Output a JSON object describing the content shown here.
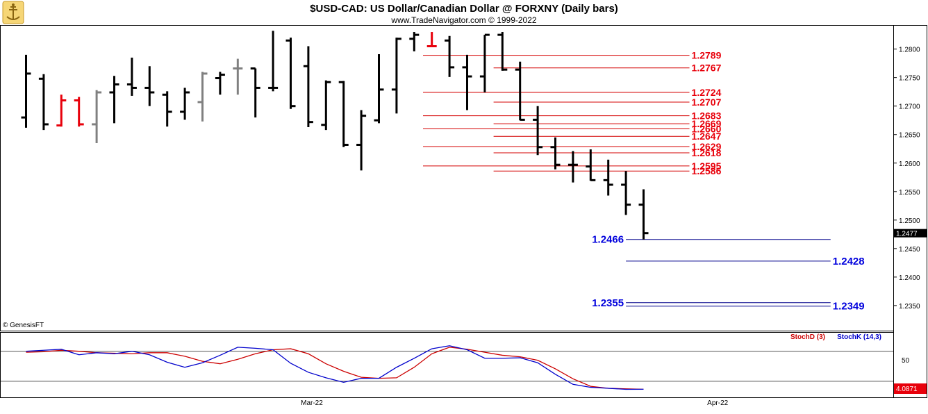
{
  "header": {
    "title": "$USD-CAD:  US Dollar/Canadian Dollar @ FORXNY  (Daily bars)",
    "subtitle": "www.TradeNavigator.com © 1999-2022"
  },
  "watermark": "© GenesisFT",
  "colors": {
    "bar_up": "#000000",
    "bar_down_red": "#e8000b",
    "bar_gray": "#808080",
    "resistance_line": "#d40000",
    "support_line": "#00008b",
    "resistance_text": "#e8000b",
    "support_text": "#0000dd",
    "stoch_d": "#cc0000",
    "stoch_k": "#0000cc",
    "last_price_bg": "#000000",
    "stoch_value_bg": "#e8000b"
  },
  "chart_data": [
    {
      "type": "ohlc",
      "title": "$USD-CAD:  US Dollar/Canadian Dollar @ FORXNY  (Daily bars)",
      "ylim": [
        1.2306,
        1.2841
      ],
      "y_ticks": [
        "1.2800",
        "1.2750",
        "1.2700",
        "1.2650",
        "1.2600",
        "1.2550",
        "1.2500",
        "1.2450",
        "1.2400",
        "1.2350"
      ],
      "x_ticks": [
        {
          "label": "Mar-22",
          "bar_index": 16.2
        },
        {
          "label": "Apr-22",
          "bar_index": 39.2
        }
      ],
      "last_price_label": "1.2477",
      "bars": [
        {
          "o": 1.268,
          "h": 1.279,
          "l": 1.2662,
          "c": 1.2757,
          "color": "black"
        },
        {
          "o": 1.2748,
          "h": 1.2756,
          "l": 1.2658,
          "c": 1.2668,
          "color": "black"
        },
        {
          "o": 1.2666,
          "h": 1.272,
          "l": 1.2664,
          "c": 1.271,
          "color": "red"
        },
        {
          "o": 1.271,
          "h": 1.2716,
          "l": 1.2664,
          "c": 1.2668,
          "color": "red"
        },
        {
          "o": 1.2668,
          "h": 1.2728,
          "l": 1.2635,
          "c": 1.2724,
          "color": "gray"
        },
        {
          "o": 1.2724,
          "h": 1.2753,
          "l": 1.267,
          "c": 1.2738,
          "color": "black"
        },
        {
          "o": 1.2738,
          "h": 1.2785,
          "l": 1.2718,
          "c": 1.2732,
          "color": "black"
        },
        {
          "o": 1.2732,
          "h": 1.277,
          "l": 1.27,
          "c": 1.2724,
          "color": "black"
        },
        {
          "o": 1.272,
          "h": 1.2726,
          "l": 1.2664,
          "c": 1.269,
          "color": "black"
        },
        {
          "o": 1.269,
          "h": 1.2732,
          "l": 1.2676,
          "c": 1.2724,
          "color": "black"
        },
        {
          "o": 1.2707,
          "h": 1.276,
          "l": 1.2673,
          "c": 1.2757,
          "color": "gray"
        },
        {
          "o": 1.2749,
          "h": 1.276,
          "l": 1.272,
          "c": 1.2755,
          "color": "black"
        },
        {
          "o": 1.2766,
          "h": 1.2783,
          "l": 1.272,
          "c": 1.2766,
          "color": "gray"
        },
        {
          "o": 1.2766,
          "h": 1.2766,
          "l": 1.268,
          "c": 1.2732,
          "color": "black"
        },
        {
          "o": 1.2732,
          "h": 1.2832,
          "l": 1.2726,
          "c": 1.2732,
          "color": "black"
        },
        {
          "o": 1.2815,
          "h": 1.282,
          "l": 1.2695,
          "c": 1.27,
          "color": "black"
        },
        {
          "o": 1.277,
          "h": 1.2805,
          "l": 1.2663,
          "c": 1.2672,
          "color": "black"
        },
        {
          "o": 1.2667,
          "h": 1.2745,
          "l": 1.2658,
          "c": 1.2742,
          "color": "black"
        },
        {
          "o": 1.2742,
          "h": 1.2744,
          "l": 1.2628,
          "c": 1.2632,
          "color": "black"
        },
        {
          "o": 1.2632,
          "h": 1.2693,
          "l": 1.2587,
          "c": 1.2683,
          "color": "black"
        },
        {
          "o": 1.2675,
          "h": 1.2791,
          "l": 1.267,
          "c": 1.2729,
          "color": "black"
        },
        {
          "o": 1.2729,
          "h": 1.282,
          "l": 1.2687,
          "c": 1.2818,
          "color": "black"
        },
        {
          "o": 1.2818,
          "h": 1.283,
          "l": 1.2796,
          "c": 1.2825,
          "color": "black"
        },
        {
          "o": 1.2805,
          "h": 1.283,
          "l": 1.2804,
          "c": 1.2805,
          "color": "red"
        },
        {
          "o": 1.2815,
          "h": 1.2823,
          "l": 1.2751,
          "c": 1.2768,
          "color": "black"
        },
        {
          "o": 1.2768,
          "h": 1.279,
          "l": 1.2693,
          "c": 1.2752,
          "color": "black"
        },
        {
          "o": 1.2752,
          "h": 1.2825,
          "l": 1.2724,
          "c": 1.2825,
          "color": "black"
        },
        {
          "o": 1.2825,
          "h": 1.283,
          "l": 1.2762,
          "c": 1.2764,
          "color": "black"
        },
        {
          "o": 1.2764,
          "h": 1.2778,
          "l": 1.2675,
          "c": 1.2676,
          "color": "black"
        },
        {
          "o": 1.2676,
          "h": 1.27,
          "l": 1.2614,
          "c": 1.2628,
          "color": "black"
        },
        {
          "o": 1.2628,
          "h": 1.2645,
          "l": 1.2589,
          "c": 1.2597,
          "color": "black"
        },
        {
          "o": 1.2597,
          "h": 1.2621,
          "l": 1.2566,
          "c": 1.2597,
          "color": "black"
        },
        {
          "o": 1.2594,
          "h": 1.2624,
          "l": 1.2569,
          "c": 1.257,
          "color": "black"
        },
        {
          "o": 1.257,
          "h": 1.2606,
          "l": 1.2543,
          "c": 1.2562,
          "color": "black"
        },
        {
          "o": 1.2562,
          "h": 1.2586,
          "l": 1.2509,
          "c": 1.2527,
          "color": "black"
        },
        {
          "o": 1.2527,
          "h": 1.2554,
          "l": 1.2466,
          "c": 1.2477,
          "color": "black"
        }
      ],
      "resistance_levels": [
        {
          "label": "1.2789",
          "value": 1.2789,
          "start_bar": 22.5,
          "end_bar": 37.6
        },
        {
          "label": "1.2767",
          "value": 1.2767,
          "start_bar": 26.5,
          "end_bar": 37.6
        },
        {
          "label": "1.2724",
          "value": 1.2724,
          "start_bar": 22.5,
          "end_bar": 37.6
        },
        {
          "label": "1.2707",
          "value": 1.2707,
          "start_bar": 26.5,
          "end_bar": 37.6
        },
        {
          "label": "1.2683",
          "value": 1.2683,
          "start_bar": 22.5,
          "end_bar": 37.6
        },
        {
          "label": "1.2669",
          "value": 1.2669,
          "start_bar": 26.5,
          "end_bar": 37.6
        },
        {
          "label": "1.2660",
          "value": 1.266,
          "start_bar": 22.5,
          "end_bar": 37.6
        },
        {
          "label": "1.2647",
          "value": 1.2647,
          "start_bar": 26.5,
          "end_bar": 37.6
        },
        {
          "label": "1.2629",
          "value": 1.2629,
          "start_bar": 22.5,
          "end_bar": 37.6
        },
        {
          "label": "1.2618",
          "value": 1.2618,
          "start_bar": 26.5,
          "end_bar": 37.6
        },
        {
          "label": "1.2595",
          "value": 1.2595,
          "start_bar": 22.5,
          "end_bar": 37.6
        },
        {
          "label": "1.2586",
          "value": 1.2586,
          "start_bar": 26.5,
          "end_bar": 37.6
        }
      ],
      "support_levels": [
        {
          "label": "1.2466",
          "value": 1.2466,
          "start_bar": 34.0,
          "end_bar": 45.6,
          "label_side": "left"
        },
        {
          "label": "1.2428",
          "value": 1.2428,
          "start_bar": 34.0,
          "end_bar": 45.6,
          "label_side": "right"
        },
        {
          "label": "1.2355",
          "value": 1.2355,
          "start_bar": 34.0,
          "end_bar": 45.6,
          "label_side": "left"
        },
        {
          "label": "1.2349",
          "value": 1.2349,
          "start_bar": 34.0,
          "end_bar": 45.6,
          "label_side": "right"
        }
      ]
    },
    {
      "type": "line",
      "title": "",
      "legend": [
        "StochD (3)",
        "StochK (14,3)"
      ],
      "legend_placement": "top-right",
      "ylim": [
        -12,
        117
      ],
      "y_ticks": [
        "50"
      ],
      "reference_lines": [
        80,
        20
      ],
      "value_label": "4.0871",
      "series": [
        {
          "name": "StochD (3)",
          "color": "#cc0000",
          "values": [
            78,
            79,
            82,
            80,
            77,
            76,
            75,
            77,
            77,
            70,
            60,
            55,
            64,
            75,
            83,
            85,
            75,
            55,
            40,
            28,
            26,
            27,
            48,
            75,
            88,
            84,
            78,
            72,
            69,
            62,
            45,
            25,
            10,
            6,
            5,
            4.1
          ]
        },
        {
          "name": "StochK (14,3)",
          "color": "#0000cc",
          "values": [
            80,
            82,
            84,
            73,
            77,
            75,
            80,
            73,
            58,
            48,
            57,
            72,
            88,
            86,
            83,
            56,
            38,
            27,
            18,
            26,
            26,
            48,
            66,
            85,
            91,
            83,
            66,
            66,
            67,
            57,
            34,
            14,
            8,
            6,
            4,
            4.1
          ]
        }
      ]
    }
  ]
}
